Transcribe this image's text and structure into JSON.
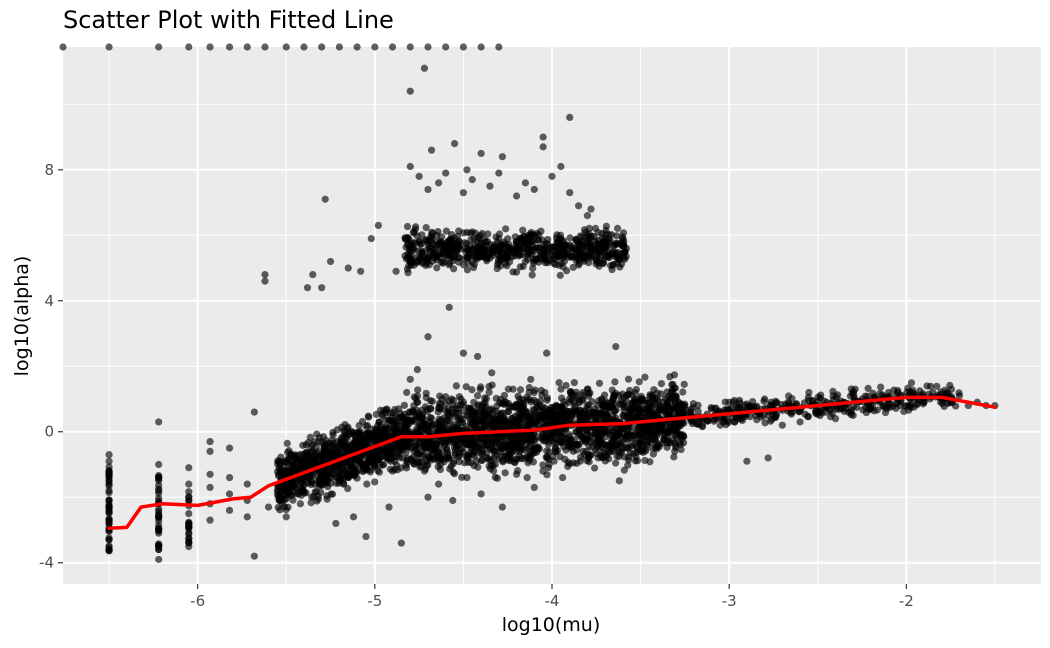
{
  "chart_data": {
    "type": "scatter",
    "title": "Scatter Plot with Fitted Line",
    "xlabel": "log10(mu)",
    "ylabel": "log10(alpha)",
    "xlim": [
      -6.76,
      -1.24
    ],
    "ylim": [
      -4.65,
      11.75
    ],
    "x_ticks": [
      -6,
      -5,
      -4,
      -3,
      -2
    ],
    "y_ticks": [
      -4,
      0,
      4,
      8
    ],
    "grid": true,
    "colors": {
      "panel": "#EBEBEB",
      "gridline": "#FFFFFF",
      "point": "#000000",
      "fit": "#FF0000"
    },
    "series": [
      {
        "type": "scatter",
        "points": [
          [
            -6.5,
            -3.6
          ],
          [
            -6.5,
            -3.3
          ],
          [
            -6.5,
            -3.0
          ],
          [
            -6.5,
            -2.7
          ],
          [
            -6.5,
            -2.4
          ],
          [
            -6.5,
            -2.1
          ],
          [
            -6.5,
            -1.8
          ],
          [
            -6.5,
            -1.5
          ],
          [
            -6.5,
            -1.2
          ],
          [
            -6.5,
            -0.7
          ],
          [
            -6.22,
            -3.9
          ],
          [
            -6.22,
            -3.5
          ],
          [
            -6.22,
            -3.0
          ],
          [
            -6.22,
            -2.6
          ],
          [
            -6.22,
            -2.2
          ],
          [
            -6.22,
            -1.8
          ],
          [
            -6.22,
            -1.4
          ],
          [
            -6.22,
            -1.0
          ],
          [
            -6.22,
            0.3
          ],
          [
            -6.05,
            -3.4
          ],
          [
            -6.05,
            -2.9
          ],
          [
            -6.05,
            -2.5
          ],
          [
            -6.05,
            -2.0
          ],
          [
            -6.05,
            -1.6
          ],
          [
            -6.05,
            -1.1
          ],
          [
            -5.93,
            -2.7
          ],
          [
            -5.93,
            -2.2
          ],
          [
            -5.93,
            -1.7
          ],
          [
            -5.93,
            -1.3
          ],
          [
            -5.93,
            -0.6
          ],
          [
            -5.93,
            -0.3
          ],
          [
            -5.82,
            -2.4
          ],
          [
            -5.82,
            -1.9
          ],
          [
            -5.82,
            -1.4
          ],
          [
            -5.82,
            -0.5
          ],
          [
            -5.72,
            -2.6
          ],
          [
            -5.72,
            -2.1
          ],
          [
            -5.72,
            -1.6
          ],
          [
            -5.68,
            -3.8
          ],
          [
            -5.68,
            0.6
          ],
          [
            -5.62,
            4.8
          ],
          [
            -5.62,
            4.6
          ],
          [
            -5.6,
            -2.3
          ],
          [
            -5.55,
            -1.8
          ],
          [
            -5.5,
            -2.6
          ],
          [
            -5.45,
            -1.4
          ],
          [
            -5.42,
            -2.2
          ],
          [
            -5.38,
            4.4
          ],
          [
            -5.35,
            4.8
          ],
          [
            -5.3,
            4.4
          ],
          [
            -5.28,
            7.1
          ],
          [
            -5.25,
            5.2
          ],
          [
            -5.22,
            -2.8
          ],
          [
            -5.2,
            -1.5
          ],
          [
            -5.18,
            -0.8
          ],
          [
            -5.15,
            5.0
          ],
          [
            -5.12,
            -2.6
          ],
          [
            -5.08,
            4.9
          ],
          [
            -5.05,
            -3.2
          ],
          [
            -5.02,
            5.9
          ],
          [
            -4.98,
            6.3
          ],
          [
            -4.95,
            -1.0
          ],
          [
            -4.92,
            -2.3
          ],
          [
            -4.9,
            -0.5
          ],
          [
            -4.88,
            4.9
          ],
          [
            -4.85,
            -3.4
          ],
          [
            -4.82,
            1.2
          ],
          [
            -4.8,
            1.6
          ],
          [
            -4.78,
            0.8
          ],
          [
            -4.76,
            1.9
          ],
          [
            -4.74,
            0.4
          ],
          [
            -4.72,
            -1.2
          ],
          [
            -4.7,
            -2.0
          ],
          [
            -4.68,
            0.2
          ],
          [
            -4.66,
            -0.4
          ],
          [
            -4.64,
            -1.6
          ],
          [
            -4.62,
            1.0
          ],
          [
            -4.6,
            -0.8
          ],
          [
            -4.58,
            0.5
          ],
          [
            -4.56,
            -2.1
          ],
          [
            -4.54,
            1.4
          ],
          [
            -4.52,
            -0.2
          ],
          [
            -4.5,
            0.9
          ],
          [
            -4.48,
            -1.4
          ],
          [
            -4.46,
            0.3
          ],
          [
            -4.44,
            -0.6
          ],
          [
            -4.42,
            1.1
          ],
          [
            -4.4,
            -1.9
          ],
          [
            -4.38,
            0.7
          ],
          [
            -4.36,
            -0.1
          ],
          [
            -4.34,
            1.8
          ],
          [
            -4.32,
            -1.0
          ],
          [
            -4.3,
            0.4
          ],
          [
            -4.28,
            -2.3
          ],
          [
            -4.26,
            0.9
          ],
          [
            -4.24,
            -0.4
          ],
          [
            -4.22,
            1.3
          ],
          [
            -4.2,
            -1.3
          ],
          [
            -4.18,
            0.1
          ],
          [
            -4.16,
            0.8
          ],
          [
            -4.14,
            -0.8
          ],
          [
            -4.12,
            1.6
          ],
          [
            -4.1,
            -1.7
          ],
          [
            -4.08,
            0.5
          ],
          [
            -4.06,
            -0.2
          ],
          [
            -4.04,
            1.2
          ],
          [
            -4.02,
            -1.1
          ],
          [
            -4.0,
            0.6
          ],
          [
            -3.98,
            -0.5
          ],
          [
            -3.96,
            1.5
          ],
          [
            -3.94,
            -1.4
          ],
          [
            -3.92,
            0.3
          ],
          [
            -3.9,
            0.9
          ],
          [
            -3.88,
            -0.6
          ],
          [
            -3.86,
            1.1
          ],
          [
            -3.84,
            -0.9
          ],
          [
            -3.82,
            0.4
          ],
          [
            -3.8,
            1.3
          ],
          [
            -3.78,
            -0.3
          ],
          [
            -3.76,
            0.7
          ],
          [
            -3.74,
            -0.8
          ],
          [
            -3.72,
            1.0
          ],
          [
            -3.7,
            0.2
          ],
          [
            -3.68,
            -0.4
          ],
          [
            -3.66,
            0.8
          ],
          [
            -3.64,
            2.6
          ],
          [
            -3.62,
            -1.5
          ],
          [
            -3.6,
            0.5
          ],
          [
            -3.58,
            1.1
          ],
          [
            -3.56,
            -0.2
          ],
          [
            -3.54,
            0.7
          ],
          [
            -3.52,
            0.3
          ],
          [
            -3.5,
            -0.6
          ],
          [
            -3.45,
            0.9
          ],
          [
            -3.4,
            0.1
          ],
          [
            -3.35,
            0.6
          ],
          [
            -3.3,
            -0.1
          ],
          [
            -3.25,
            0.8
          ],
          [
            -3.2,
            0.3
          ],
          [
            -3.15,
            0.4
          ],
          [
            -3.1,
            0.7
          ],
          [
            -3.05,
            0.2
          ],
          [
            -3.0,
            0.9
          ],
          [
            -2.95,
            0.4
          ],
          [
            -2.9,
            -0.9
          ],
          [
            -2.85,
            0.5
          ],
          [
            -2.8,
            1.0
          ],
          [
            -2.78,
            -0.8
          ],
          [
            -2.75,
            0.6
          ],
          [
            -2.7,
            0.2
          ],
          [
            -2.65,
            0.8
          ],
          [
            -2.6,
            0.3
          ],
          [
            -2.55,
            1.2
          ],
          [
            -2.5,
            0.6
          ],
          [
            -2.45,
            0.9
          ],
          [
            -2.4,
            0.4
          ],
          [
            -2.35,
            0.8
          ],
          [
            -2.3,
            0.5
          ],
          [
            -2.25,
            1.0
          ],
          [
            -2.2,
            0.7
          ],
          [
            -2.15,
            0.9
          ],
          [
            -2.1,
            1.2
          ],
          [
            -2.05,
            1.0
          ],
          [
            -2.0,
            0.8
          ],
          [
            -1.95,
            1.1
          ],
          [
            -1.9,
            0.9
          ],
          [
            -1.85,
            1.2
          ],
          [
            -1.8,
            1.0
          ],
          [
            -1.75,
            0.9
          ],
          [
            -1.7,
            1.1
          ],
          [
            -1.65,
            0.8
          ],
          [
            -1.6,
            0.9
          ],
          [
            -1.55,
            0.8
          ],
          [
            -1.5,
            0.8
          ],
          [
            -4.8,
            5.5
          ],
          [
            -4.75,
            5.8
          ],
          [
            -4.7,
            5.2
          ],
          [
            -4.65,
            6.0
          ],
          [
            -4.6,
            5.4
          ],
          [
            -4.55,
            5.7
          ],
          [
            -4.5,
            5.1
          ],
          [
            -4.45,
            6.1
          ],
          [
            -4.4,
            5.6
          ],
          [
            -4.35,
            5.3
          ],
          [
            -4.3,
            5.9
          ],
          [
            -4.25,
            5.5
          ],
          [
            -4.2,
            5.8
          ],
          [
            -4.15,
            5.2
          ],
          [
            -4.1,
            6.0
          ],
          [
            -4.05,
            5.6
          ],
          [
            -4.0,
            5.4
          ],
          [
            -3.95,
            5.9
          ],
          [
            -3.9,
            5.7
          ],
          [
            -3.85,
            5.3
          ],
          [
            -3.8,
            6.0
          ],
          [
            -3.75,
            5.5
          ],
          [
            -3.7,
            5.8
          ],
          [
            -3.65,
            5.7
          ],
          [
            -3.6,
            5.9
          ],
          [
            -3.58,
            5.6
          ],
          [
            -4.8,
            8.1
          ],
          [
            -4.75,
            7.8
          ],
          [
            -4.7,
            7.4
          ],
          [
            -4.68,
            8.6
          ],
          [
            -4.64,
            7.6
          ],
          [
            -4.6,
            7.9
          ],
          [
            -4.55,
            8.8
          ],
          [
            -4.5,
            7.3
          ],
          [
            -4.48,
            8.0
          ],
          [
            -4.45,
            7.7
          ],
          [
            -4.4,
            8.5
          ],
          [
            -4.35,
            7.5
          ],
          [
            -4.3,
            7.9
          ],
          [
            -4.28,
            8.4
          ],
          [
            -4.2,
            7.2
          ],
          [
            -4.15,
            7.6
          ],
          [
            -4.1,
            7.4
          ],
          [
            -4.05,
            8.7
          ],
          [
            -4.0,
            7.8
          ],
          [
            -3.95,
            8.1
          ],
          [
            -3.9,
            7.3
          ],
          [
            -3.85,
            6.9
          ],
          [
            -3.8,
            6.6
          ],
          [
            -3.78,
            6.8
          ],
          [
            -3.9,
            9.6
          ],
          [
            -4.05,
            9.0
          ],
          [
            -4.58,
            3.8
          ],
          [
            -4.7,
            2.9
          ],
          [
            -4.5,
            2.4
          ],
          [
            -4.42,
            2.3
          ],
          [
            -4.03,
            2.4
          ],
          [
            -4.8,
            10.4
          ],
          [
            -4.72,
            11.1
          ],
          [
            -6.76,
            11.75
          ],
          [
            -6.5,
            11.75
          ],
          [
            -6.22,
            11.75
          ],
          [
            -6.05,
            11.75
          ],
          [
            -5.93,
            11.75
          ],
          [
            -5.82,
            11.75
          ],
          [
            -5.72,
            11.75
          ],
          [
            -5.62,
            11.75
          ],
          [
            -5.5,
            11.75
          ],
          [
            -5.4,
            11.75
          ],
          [
            -5.3,
            11.75
          ],
          [
            -5.2,
            11.75
          ],
          [
            -5.1,
            11.75
          ],
          [
            -5.0,
            11.75
          ],
          [
            -4.9,
            11.75
          ],
          [
            -4.8,
            11.75
          ],
          [
            -4.7,
            11.75
          ],
          [
            -4.6,
            11.75
          ],
          [
            -4.5,
            11.75
          ],
          [
            -4.4,
            11.75
          ],
          [
            -4.3,
            11.75
          ]
        ]
      },
      {
        "type": "line",
        "points": [
          [
            -6.5,
            -2.95
          ],
          [
            -6.4,
            -2.92
          ],
          [
            -6.32,
            -2.3
          ],
          [
            -6.2,
            -2.2
          ],
          [
            -6.0,
            -2.25
          ],
          [
            -5.8,
            -2.05
          ],
          [
            -5.7,
            -2.0
          ],
          [
            -5.6,
            -1.65
          ],
          [
            -5.4,
            -1.25
          ],
          [
            -5.2,
            -0.85
          ],
          [
            -5.0,
            -0.45
          ],
          [
            -4.85,
            -0.15
          ],
          [
            -4.7,
            -0.15
          ],
          [
            -4.5,
            -0.05
          ],
          [
            -4.3,
            0.0
          ],
          [
            -4.1,
            0.05
          ],
          [
            -3.9,
            0.2
          ],
          [
            -3.6,
            0.25
          ],
          [
            -3.4,
            0.35
          ],
          [
            -3.2,
            0.45
          ],
          [
            -3.0,
            0.55
          ],
          [
            -2.8,
            0.65
          ],
          [
            -2.6,
            0.75
          ],
          [
            -2.4,
            0.85
          ],
          [
            -2.2,
            0.95
          ],
          [
            -2.0,
            1.05
          ],
          [
            -1.8,
            1.05
          ],
          [
            -1.6,
            0.85
          ],
          [
            -1.5,
            0.75
          ]
        ]
      }
    ]
  }
}
